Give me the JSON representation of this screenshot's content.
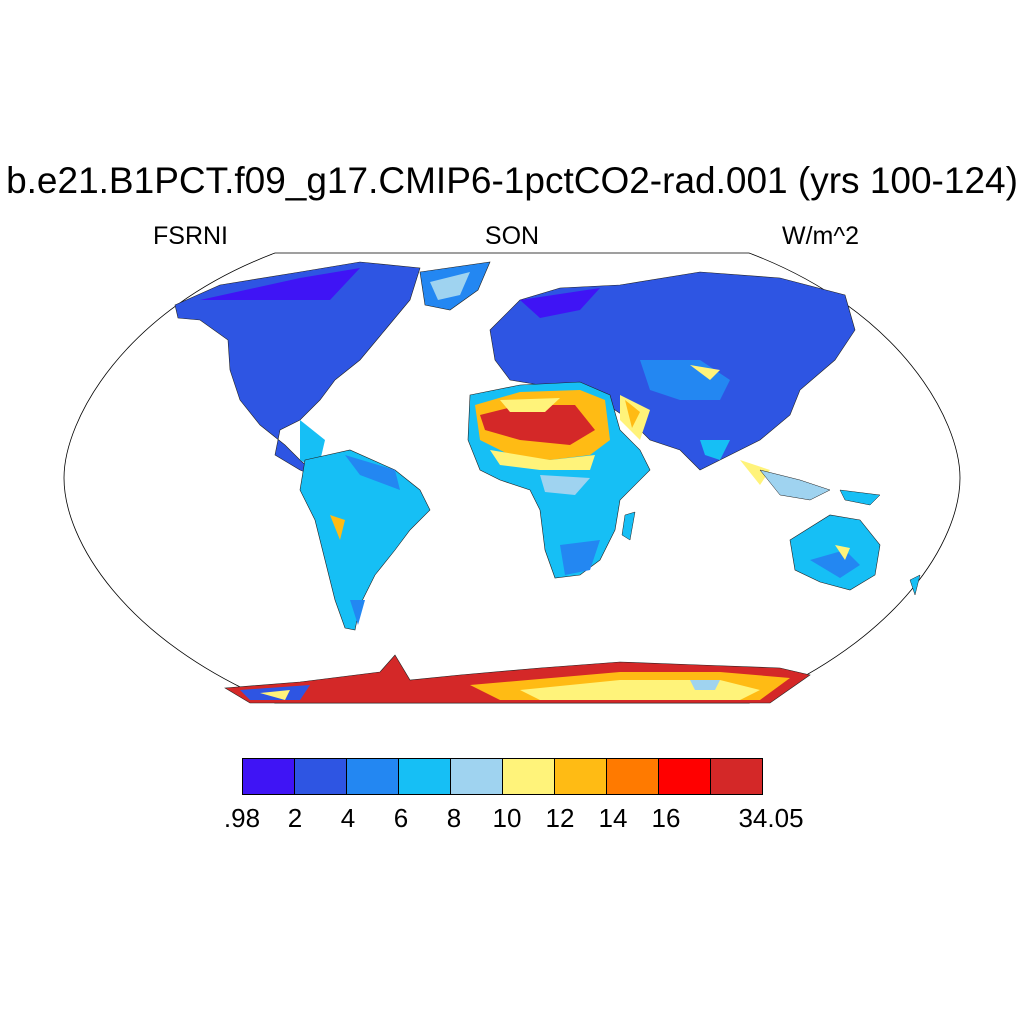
{
  "title": "b.e21.B1PCT.f09_g17.CMIP6-1pctCO2-rad.001 (yrs 100-124)",
  "left_label": "FSRNI",
  "center_label": "SON",
  "right_label": "W/m^2",
  "projection": "Robinson (global)",
  "colorbar": {
    "colors": [
      "#3f14f5",
      "#2e55e3",
      "#2387f2",
      "#16bff5",
      "#9fd3f0",
      "#fff37a",
      "#ffbb14",
      "#ff7a00",
      "#ff0000",
      "#d42828"
    ],
    "labels": [
      ".98",
      "2",
      "4",
      "6",
      "8",
      "10",
      "12",
      "14",
      "16",
      "34.05"
    ]
  }
}
